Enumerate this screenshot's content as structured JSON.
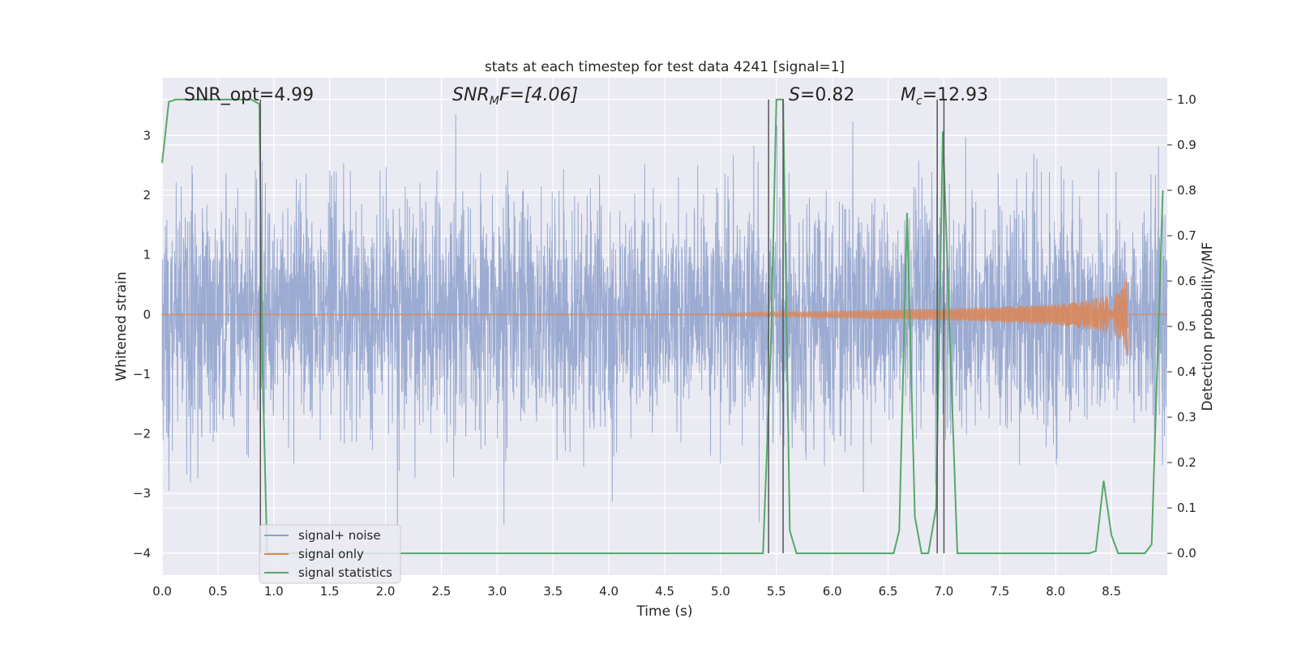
{
  "chart_data": {
    "type": "line",
    "title": "stats at each timestep for test data 4241 [signal=1]",
    "xlabel": "Time (s)",
    "ylabel_left": "Whitened strain",
    "ylabel_right": "Detection probability/MF",
    "xlim": [
      0,
      9.0
    ],
    "ylim_left": [
      -4.37,
      3.97
    ],
    "ylim_right": [
      -0.048,
      1.048
    ],
    "x_ticks": [
      "0.0",
      "0.5",
      "1.0",
      "1.5",
      "2.0",
      "2.5",
      "3.0",
      "3.5",
      "4.0",
      "4.5",
      "5.0",
      "5.5",
      "6.0",
      "6.5",
      "7.0",
      "7.5",
      "8.0",
      "8.5"
    ],
    "y_ticks_left": [
      "−4",
      "−3",
      "−2",
      "−1",
      "0",
      "1",
      "2",
      "3"
    ],
    "y_ticks_right": [
      "0.0",
      "0.1",
      "0.2",
      "0.3",
      "0.4",
      "0.5",
      "0.6",
      "0.7",
      "0.8",
      "0.9",
      "1.0"
    ],
    "annotations": {
      "snr_opt": "SNR_opt=4.99",
      "snr_mf_base": "SNR",
      "snr_mf_sub": "M",
      "snr_mf_rest": "F=[4.06]",
      "s_label": "S",
      "s_rest": "=0.82",
      "mc_label": "M",
      "mc_sub": "c",
      "mc_rest": "=12.93"
    },
    "legend_placement": "lower-left",
    "grid": true,
    "series": [
      {
        "name": "signal+ noise",
        "color": "#8da0cb",
        "description_values": {
          "typical_range": [
            -2.5,
            2.5
          ],
          "max": 3.6,
          "min": -4.0
        }
      },
      {
        "name": "signal only",
        "color": "#dd8452",
        "envelope_x": [
          5.0,
          5.5,
          6.0,
          6.5,
          7.0,
          7.5,
          8.0,
          8.3,
          8.5,
          8.6,
          8.65,
          8.66
        ],
        "envelope_y": [
          0.02,
          0.04,
          0.06,
          0.08,
          0.1,
          0.13,
          0.18,
          0.24,
          0.33,
          0.45,
          0.7,
          0.0
        ]
      },
      {
        "name": "signal statistics",
        "color": "#55a868",
        "x": [
          0.0,
          0.06,
          0.12,
          0.5,
          0.8,
          0.87,
          0.9,
          0.94,
          1.0,
          5.38,
          5.45,
          5.5,
          5.56,
          5.62,
          5.68,
          6.0,
          6.55,
          6.6,
          6.67,
          6.74,
          6.8,
          6.86,
          6.93,
          6.99,
          7.05,
          7.12,
          7.18,
          8.0,
          8.3,
          8.36,
          8.43,
          8.5,
          8.56,
          8.8,
          8.86,
          8.96
        ],
        "values": [
          0.86,
          0.995,
          1.0,
          1.0,
          1.0,
          0.99,
          0.4,
          0.0,
          0.0,
          0.0,
          0.45,
          1.0,
          1.0,
          0.05,
          0.0,
          0.0,
          0.0,
          0.05,
          0.75,
          0.08,
          0.0,
          0.0,
          0.1,
          0.93,
          0.5,
          0.0,
          0.0,
          0.0,
          0.0,
          0.005,
          0.16,
          0.04,
          0.0,
          0.0,
          0.02,
          0.8
        ]
      }
    ],
    "vertical_lines_x": [
      0.88,
      5.43,
      5.56,
      6.94,
      7.0
    ]
  }
}
